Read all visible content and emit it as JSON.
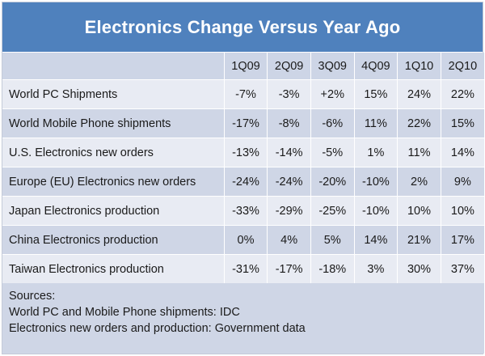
{
  "title": "Electronics Change Versus Year Ago",
  "table": {
    "columns": [
      "1Q09",
      "2Q09",
      "3Q09",
      "4Q09",
      "1Q10",
      "2Q10"
    ],
    "rows": [
      {
        "label": "World PC Shipments",
        "values": [
          "-7%",
          "-3%",
          "+2%",
          "15%",
          "24%",
          "22%"
        ]
      },
      {
        "label": "World Mobile Phone shipments",
        "values": [
          "-17%",
          "-8%",
          "-6%",
          "11%",
          "22%",
          "15%"
        ]
      },
      {
        "label": "U.S. Electronics new orders",
        "values": [
          "-13%",
          "-14%",
          "-5%",
          "1%",
          "11%",
          "14%"
        ]
      },
      {
        "label": "Europe (EU) Electronics new orders",
        "values": [
          "-24%",
          "-24%",
          "-20%",
          "-10%",
          "2%",
          "9%"
        ]
      },
      {
        "label": "Japan Electronics production",
        "values": [
          "-33%",
          "-29%",
          "-25%",
          "-10%",
          "10%",
          "10%"
        ]
      },
      {
        "label": "China Electronics production",
        "values": [
          "0%",
          "4%",
          "5%",
          "14%",
          "21%",
          "17%"
        ]
      },
      {
        "label": "Taiwan Electronics production",
        "values": [
          "-31%",
          "-17%",
          "-18%",
          "3%",
          "30%",
          "37%"
        ]
      }
    ]
  },
  "sources": {
    "heading": "Sources:",
    "lines": [
      "World PC and Mobile Phone shipments: IDC",
      "Electronics new orders and production: Government data"
    ]
  },
  "colors": {
    "title_bar": "#4f81bd",
    "row_dark": "#cfd6e6",
    "row_light": "#e8ebf3"
  }
}
